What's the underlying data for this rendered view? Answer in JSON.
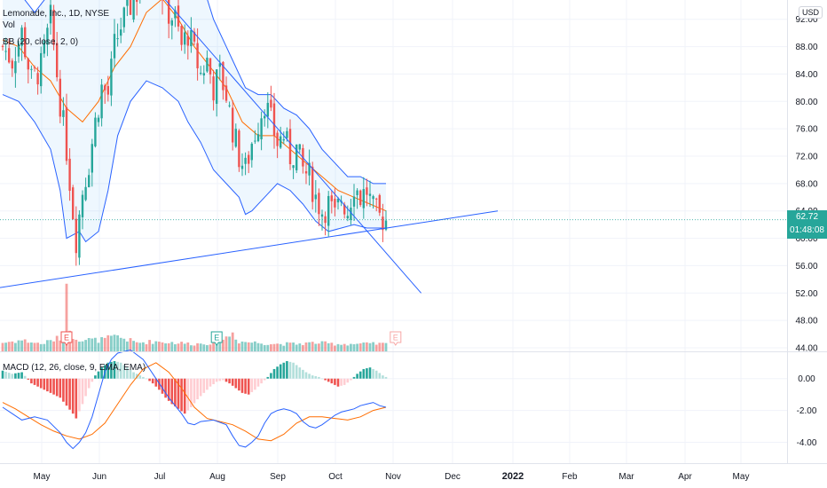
{
  "header": {
    "symbol_line": "Lemonade, Inc., 1D, NYSE",
    "vol_label": "Vol",
    "bb_label": "BB (20, close, 2, 0)",
    "macd_label": "MACD (12, 26, close, 9, EMA, EMA)",
    "currency": "USD"
  },
  "last_price": {
    "value": "62.72",
    "countdown": "01:48:08"
  },
  "colors": {
    "up": "#26a69a",
    "down": "#ef5350",
    "bb_band": "#2962ff",
    "bb_basis": "#ff6d00",
    "bb_fill": "#2196f3",
    "trendline": "#2962ff",
    "grid": "#f0f3fa",
    "axis_text": "#131722",
    "macd_line": "#2962ff",
    "signal_line": "#ff6d00",
    "hist_up_strong": "#26a69a",
    "hist_up_weak": "#b2dfdb",
    "hist_down_strong": "#ef5350",
    "hist_down_weak": "#ffcdd2"
  },
  "chart_data": {
    "type": "candlestick",
    "x_labels": [
      "May",
      "Jun",
      "Jul",
      "Aug",
      "Sep",
      "Oct",
      "Nov",
      "Dec",
      "2022",
      "Feb",
      "Mar",
      "Apr",
      "May"
    ],
    "price_axis": {
      "ticks": [
        "92.00",
        "88.00",
        "84.00",
        "80.00",
        "76.00",
        "72.00",
        "68.00",
        "64.00",
        "60.00",
        "56.00",
        "52.00",
        "48.00",
        "44.00"
      ],
      "range": [
        44,
        93
      ]
    },
    "macd_axis": {
      "ticks": [
        "0.00",
        "-2.00",
        "-4.00"
      ],
      "range": [
        -5.2,
        1.6
      ]
    },
    "price_path": [
      [
        0,
        88
      ],
      [
        3,
        86
      ],
      [
        6,
        90
      ],
      [
        9,
        83
      ],
      [
        12,
        85
      ],
      [
        15,
        92
      ],
      [
        18,
        80
      ],
      [
        20,
        73
      ],
      [
        22,
        64
      ],
      [
        23,
        60
      ],
      [
        25,
        67
      ],
      [
        27,
        71
      ],
      [
        29,
        77
      ],
      [
        31,
        82
      ],
      [
        33,
        81
      ],
      [
        35,
        88
      ],
      [
        37,
        91
      ],
      [
        39,
        93
      ],
      [
        41,
        95
      ],
      [
        45,
        98
      ],
      [
        48,
        99
      ],
      [
        50,
        96
      ],
      [
        52,
        93
      ],
      [
        54,
        92
      ],
      [
        56,
        88
      ],
      [
        58,
        90
      ],
      [
        60,
        87
      ],
      [
        62,
        84
      ],
      [
        64,
        86
      ],
      [
        66,
        82
      ],
      [
        68,
        84
      ],
      [
        70,
        81
      ],
      [
        72,
        76
      ],
      [
        74,
        72
      ],
      [
        76,
        70
      ],
      [
        78,
        74
      ],
      [
        80,
        77
      ],
      [
        82,
        80
      ],
      [
        84,
        77
      ],
      [
        86,
        74
      ],
      [
        88,
        75
      ],
      [
        90,
        72
      ],
      [
        92,
        73
      ],
      [
        94,
        70
      ],
      [
        96,
        69
      ],
      [
        98,
        66
      ],
      [
        100,
        64
      ],
      [
        102,
        65
      ],
      [
        104,
        63
      ],
      [
        106,
        66
      ],
      [
        108,
        64
      ],
      [
        110,
        68
      ],
      [
        112,
        66
      ],
      [
        114,
        67
      ],
      [
        116,
        64
      ],
      [
        118,
        63
      ],
      [
        120,
        62.72
      ]
    ],
    "bb_upper": [
      [
        0,
        97
      ],
      [
        5,
        96
      ],
      [
        10,
        93
      ],
      [
        15,
        96
      ],
      [
        20,
        99
      ],
      [
        30,
        101
      ],
      [
        40,
        104
      ],
      [
        50,
        106
      ],
      [
        58,
        103
      ],
      [
        62,
        98
      ],
      [
        66,
        92
      ],
      [
        70,
        88
      ],
      [
        72,
        86
      ],
      [
        76,
        82
      ],
      [
        80,
        81
      ],
      [
        84,
        81
      ],
      [
        88,
        79
      ],
      [
        92,
        78
      ],
      [
        96,
        76
      ],
      [
        100,
        73
      ],
      [
        104,
        71
      ],
      [
        108,
        69
      ],
      [
        112,
        69
      ],
      [
        116,
        68
      ],
      [
        120,
        68
      ]
    ],
    "bb_basis": [
      [
        0,
        89
      ],
      [
        5,
        88
      ],
      [
        10,
        85
      ],
      [
        15,
        83
      ],
      [
        20,
        79
      ],
      [
        25,
        77
      ],
      [
        30,
        80
      ],
      [
        35,
        85
      ],
      [
        40,
        88
      ],
      [
        45,
        93
      ],
      [
        50,
        95
      ],
      [
        55,
        92
      ],
      [
        60,
        88
      ],
      [
        65,
        85
      ],
      [
        70,
        82
      ],
      [
        75,
        77
      ],
      [
        80,
        75
      ],
      [
        85,
        75
      ],
      [
        90,
        73
      ],
      [
        95,
        71
      ],
      [
        100,
        69
      ],
      [
        105,
        67
      ],
      [
        110,
        66
      ],
      [
        115,
        65
      ],
      [
        120,
        64
      ]
    ],
    "bb_lower": [
      [
        0,
        81
      ],
      [
        5,
        80
      ],
      [
        10,
        77
      ],
      [
        15,
        73
      ],
      [
        18,
        67
      ],
      [
        20,
        60
      ],
      [
        24,
        61
      ],
      [
        26,
        59.5
      ],
      [
        30,
        61
      ],
      [
        33,
        67
      ],
      [
        36,
        75
      ],
      [
        40,
        80
      ],
      [
        45,
        83
      ],
      [
        50,
        82
      ],
      [
        55,
        80
      ],
      [
        58,
        77
      ],
      [
        62,
        74
      ],
      [
        66,
        70
      ],
      [
        70,
        68
      ],
      [
        74,
        66
      ],
      [
        76,
        63.5
      ],
      [
        78,
        64
      ],
      [
        82,
        66
      ],
      [
        86,
        68
      ],
      [
        90,
        67
      ],
      [
        94,
        65
      ],
      [
        98,
        62.5
      ],
      [
        102,
        61
      ],
      [
        106,
        61.5
      ],
      [
        110,
        62
      ],
      [
        114,
        61.5
      ],
      [
        118,
        61.5
      ],
      [
        120,
        61.5
      ]
    ],
    "volume_path": [
      [
        0,
        0.35
      ],
      [
        6,
        0.45
      ],
      [
        12,
        0.3
      ],
      [
        18,
        0.55
      ],
      [
        20,
        1.0
      ],
      [
        21,
        0.7
      ],
      [
        24,
        0.5
      ],
      [
        30,
        0.45
      ],
      [
        36,
        0.6
      ],
      [
        42,
        0.35
      ],
      [
        48,
        0.4
      ],
      [
        54,
        0.35
      ],
      [
        60,
        0.3
      ],
      [
        66,
        0.35
      ],
      [
        70,
        0.55
      ],
      [
        72,
        0.75
      ],
      [
        74,
        0.4
      ],
      [
        80,
        0.35
      ],
      [
        86,
        0.3
      ],
      [
        92,
        0.3
      ],
      [
        98,
        0.35
      ],
      [
        104,
        0.3
      ],
      [
        110,
        0.3
      ],
      [
        116,
        0.3
      ],
      [
        120,
        0.3
      ]
    ],
    "macd_hist": [
      [
        0,
        0.5
      ],
      [
        3,
        0.3
      ],
      [
        6,
        0.4
      ],
      [
        9,
        -0.3
      ],
      [
        12,
        -0.6
      ],
      [
        15,
        -0.9
      ],
      [
        18,
        -1.2
      ],
      [
        20,
        -1.7
      ],
      [
        22,
        -2.2
      ],
      [
        23,
        -2.5
      ],
      [
        25,
        -1.6
      ],
      [
        27,
        -0.6
      ],
      [
        29,
        0.2
      ],
      [
        31,
        0.7
      ],
      [
        33,
        1.0
      ],
      [
        35,
        1.1
      ],
      [
        37,
        1.0
      ],
      [
        39,
        0.7
      ],
      [
        41,
        0.4
      ],
      [
        43,
        0.2
      ],
      [
        45,
        0.0
      ],
      [
        47,
        -0.3
      ],
      [
        49,
        -0.7
      ],
      [
        51,
        -1.2
      ],
      [
        53,
        -1.6
      ],
      [
        55,
        -1.9
      ],
      [
        57,
        -2.2
      ],
      [
        59,
        -1.8
      ],
      [
        61,
        -1.3
      ],
      [
        63,
        -0.9
      ],
      [
        65,
        -0.5
      ],
      [
        67,
        -0.2
      ],
      [
        69,
        -0.1
      ],
      [
        71,
        -0.3
      ],
      [
        73,
        -0.6
      ],
      [
        75,
        -0.9
      ],
      [
        77,
        -1.0
      ],
      [
        79,
        -0.7
      ],
      [
        81,
        -0.3
      ],
      [
        83,
        0.1
      ],
      [
        85,
        0.6
      ],
      [
        87,
        0.9
      ],
      [
        89,
        1.1
      ],
      [
        91,
        1.0
      ],
      [
        93,
        0.7
      ],
      [
        95,
        0.4
      ],
      [
        97,
        0.2
      ],
      [
        99,
        0.1
      ],
      [
        101,
        -0.1
      ],
      [
        103,
        -0.3
      ],
      [
        105,
        -0.5
      ],
      [
        107,
        -0.4
      ],
      [
        109,
        -0.1
      ],
      [
        111,
        0.3
      ],
      [
        113,
        0.6
      ],
      [
        115,
        0.7
      ],
      [
        117,
        0.5
      ],
      [
        119,
        0.2
      ],
      [
        120,
        0.1
      ]
    ],
    "macd_line": [
      [
        0,
        -1.8
      ],
      [
        3,
        -2.2
      ],
      [
        6,
        -2.6
      ],
      [
        10,
        -2.4
      ],
      [
        14,
        -2.6
      ],
      [
        18,
        -3.4
      ],
      [
        20,
        -4.0
      ],
      [
        22,
        -4.4
      ],
      [
        24,
        -4.0
      ],
      [
        26,
        -3.4
      ],
      [
        28,
        -2.4
      ],
      [
        30,
        -1.0
      ],
      [
        32,
        0.4
      ],
      [
        34,
        1.2
      ],
      [
        36,
        1.6
      ],
      [
        40,
        1.8
      ],
      [
        44,
        1.2
      ],
      [
        48,
        0.0
      ],
      [
        52,
        -1.2
      ],
      [
        56,
        -2.2
      ],
      [
        58,
        -2.8
      ],
      [
        60,
        -2.9
      ],
      [
        62,
        -2.7
      ],
      [
        66,
        -2.6
      ],
      [
        70,
        -2.9
      ],
      [
        72,
        -3.6
      ],
      [
        74,
        -4.2
      ],
      [
        76,
        -4.3
      ],
      [
        78,
        -4.0
      ],
      [
        80,
        -3.6
      ],
      [
        82,
        -2.8
      ],
      [
        84,
        -2.2
      ],
      [
        86,
        -2.0
      ],
      [
        88,
        -1.9
      ],
      [
        90,
        -2.0
      ],
      [
        92,
        -2.2
      ],
      [
        94,
        -2.7
      ],
      [
        96,
        -3.0
      ],
      [
        98,
        -3.1
      ],
      [
        100,
        -2.9
      ],
      [
        102,
        -2.6
      ],
      [
        104,
        -2.3
      ],
      [
        106,
        -2.1
      ],
      [
        108,
        -2.0
      ],
      [
        110,
        -1.9
      ],
      [
        112,
        -1.7
      ],
      [
        114,
        -1.6
      ],
      [
        116,
        -1.5
      ],
      [
        118,
        -1.7
      ],
      [
        120,
        -1.8
      ]
    ],
    "signal_line": [
      [
        0,
        -1.5
      ],
      [
        4,
        -1.9
      ],
      [
        8,
        -2.4
      ],
      [
        12,
        -2.9
      ],
      [
        16,
        -3.3
      ],
      [
        20,
        -3.6
      ],
      [
        24,
        -3.8
      ],
      [
        28,
        -3.5
      ],
      [
        32,
        -2.8
      ],
      [
        36,
        -1.6
      ],
      [
        40,
        -0.4
      ],
      [
        44,
        0.6
      ],
      [
        48,
        1.0
      ],
      [
        52,
        0.4
      ],
      [
        56,
        -0.6
      ],
      [
        60,
        -1.8
      ],
      [
        64,
        -2.5
      ],
      [
        68,
        -2.7
      ],
      [
        72,
        -2.9
      ],
      [
        76,
        -3.3
      ],
      [
        80,
        -3.8
      ],
      [
        84,
        -3.9
      ],
      [
        88,
        -3.5
      ],
      [
        92,
        -2.8
      ],
      [
        96,
        -2.4
      ],
      [
        100,
        -2.4
      ],
      [
        104,
        -2.5
      ],
      [
        108,
        -2.6
      ],
      [
        112,
        -2.4
      ],
      [
        116,
        -2.0
      ],
      [
        120,
        -1.8
      ]
    ],
    "trendlines": [
      {
        "from": [
          45,
          98
        ],
        "to": [
          131,
          52
        ]
      },
      {
        "from": [
          -5,
          52.5
        ],
        "to": [
          155,
          64
        ]
      }
    ],
    "earnings_markers": [
      {
        "x": 20,
        "label": "E",
        "style": "past-down"
      },
      {
        "x": 67,
        "label": "E",
        "style": "past-up"
      },
      {
        "x": 123,
        "label": "E",
        "style": "future"
      }
    ]
  }
}
